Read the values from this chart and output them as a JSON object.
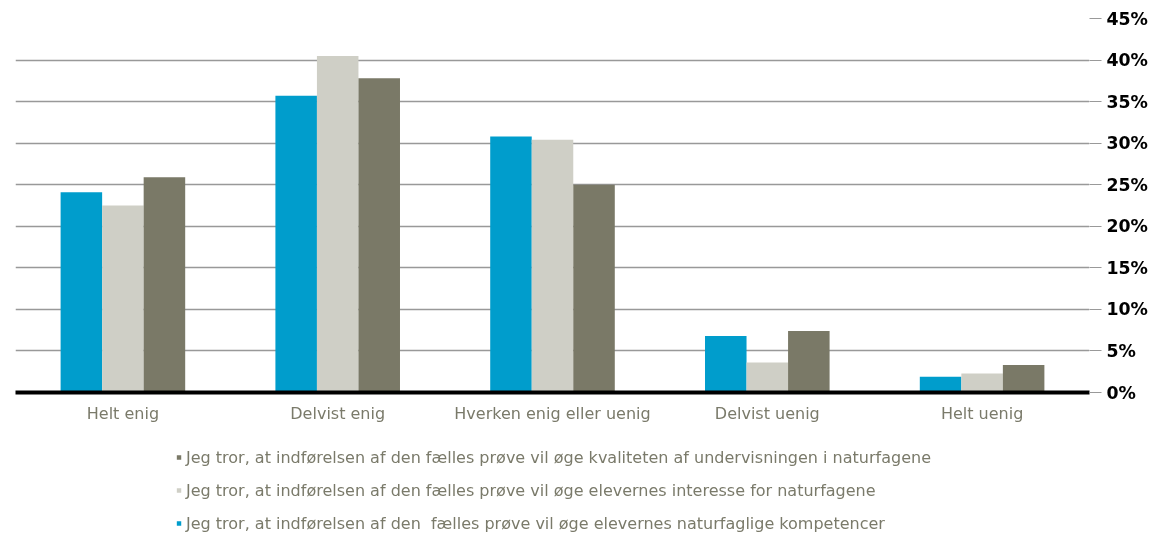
{
  "chart_data": {
    "type": "bar",
    "categories": [
      "Helt enig",
      "Delvist enig",
      "Hverken enig eller uenig",
      "Delvist uenig",
      "Helt uenig"
    ],
    "series": [
      {
        "name": "Jeg tror, at indførelsen af den  fælles prøve vil øge elevernes naturfaglige kompetencer",
        "color": "#009dcc",
        "values": [
          24.1,
          35.7,
          30.8,
          6.8,
          1.9
        ]
      },
      {
        "name": "Jeg tror, at indførelsen af den fælles prøve vil øge elevernes interesse for naturfagene",
        "color": "#cfcfc6",
        "values": [
          22.5,
          40.5,
          30.4,
          3.6,
          2.3
        ]
      },
      {
        "name": "Jeg tror, at indførelsen af den fælles prøve vil øge kvaliteten af undervisningen i naturfagene",
        "color": "#7a7967",
        "values": [
          25.9,
          37.8,
          25.0,
          7.4,
          3.3
        ]
      }
    ],
    "ylim": [
      0,
      45
    ],
    "yticks": [
      {
        "value": 0,
        "label": "0%"
      },
      {
        "value": 5,
        "label": "5%"
      },
      {
        "value": 10,
        "label": "10%"
      },
      {
        "value": 15,
        "label": "15%"
      },
      {
        "value": 20,
        "label": "20%"
      },
      {
        "value": 25,
        "label": "25%"
      },
      {
        "value": 30,
        "label": "30%"
      },
      {
        "value": 35,
        "label": "35%"
      },
      {
        "value": 40,
        "label": "40%"
      },
      {
        "value": 45,
        "label": "45%"
      }
    ],
    "grid": "y",
    "legend": "bottom"
  }
}
